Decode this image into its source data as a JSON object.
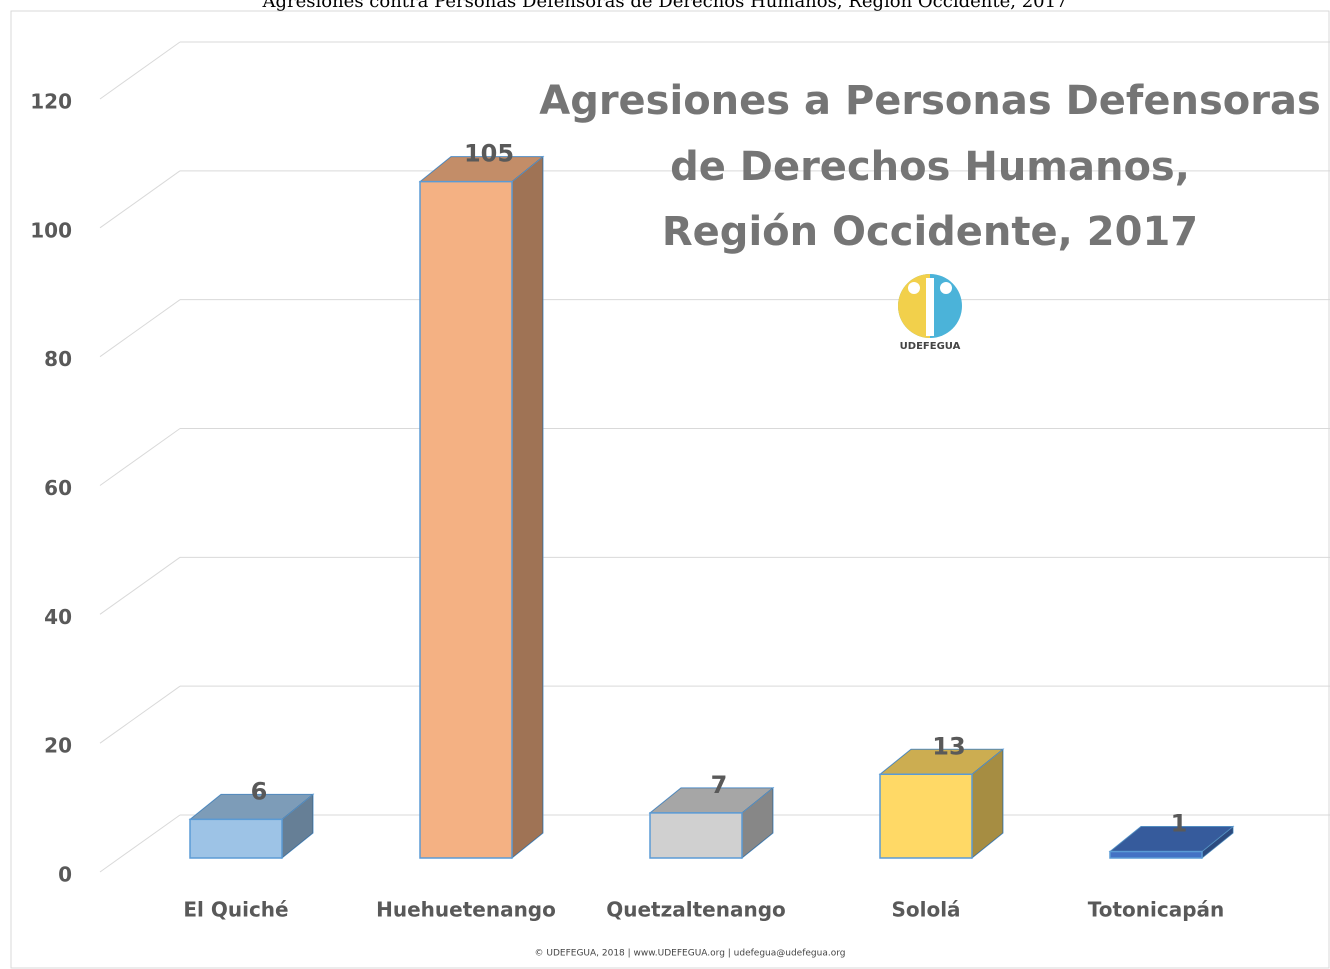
{
  "caption": "Agresiones contra Personas Defensoras de Derechos Humanos, Región Occidente, 2017",
  "footer": "© UDEFEGUA, 2018 | www.UDEFEGUA.org | udefegua@udefegua.org",
  "logo_text": "UDEFEGUA",
  "chart_data": {
    "type": "bar3d",
    "title": [
      "Agresiones a Personas Defensoras",
      "de Derechos Humanos,",
      "Región Occidente, 2017"
    ],
    "categories": [
      "El Quiché",
      "Huehuetenango",
      "Quetzaltenango",
      "Sololá",
      "Totonicapán"
    ],
    "values": [
      6,
      105,
      7,
      13,
      1
    ],
    "colors": [
      "#9dc3e6",
      "#f4b183",
      "#d0d0d0",
      "#ffd966",
      "#4472c4"
    ],
    "ylim": [
      0,
      120
    ],
    "yticks": [
      0,
      20,
      40,
      60,
      80,
      100,
      120
    ],
    "grid": true
  }
}
